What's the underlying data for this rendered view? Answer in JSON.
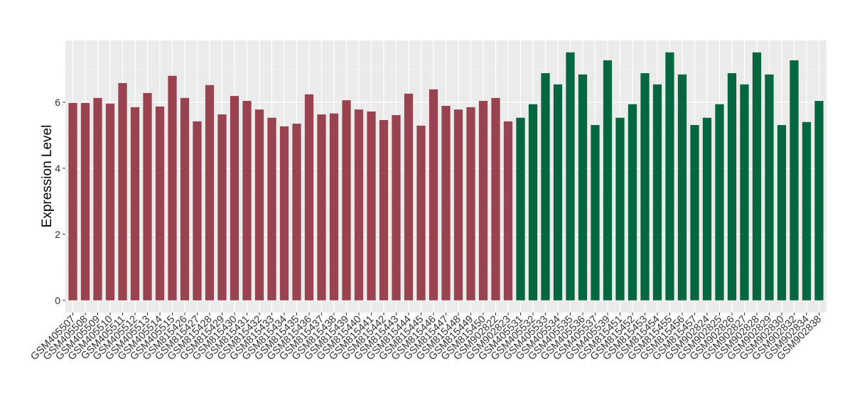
{
  "chart_data": {
    "type": "bar",
    "y_label": "Expression Level",
    "categories": [
      "GSM405507",
      "GSM405508",
      "GSM405509",
      "GSM405510",
      "GSM405511",
      "GSM405512",
      "GSM405513",
      "GSM405514",
      "GSM405515",
      "GSM815426",
      "GSM815427",
      "GSM815428",
      "GSM815429",
      "GSM815430",
      "GSM815431",
      "GSM815432",
      "GSM815433",
      "GSM815434",
      "GSM815435",
      "GSM815436",
      "GSM815437",
      "GSM815438",
      "GSM815439",
      "GSM815440",
      "GSM815441",
      "GSM815442",
      "GSM815443",
      "GSM815444",
      "GSM815445",
      "GSM815446",
      "GSM815447",
      "GSM815448",
      "GSM815449",
      "GSM815450",
      "GSM902822",
      "GSM902823",
      "GSM405531",
      "GSM405532",
      "GSM405533",
      "GSM405534",
      "GSM405535",
      "GSM405536",
      "GSM405537",
      "GSM405539",
      "GSM815451",
      "GSM815452",
      "GSM815453",
      "GSM815454",
      "GSM815455",
      "GSM815456",
      "GSM815457",
      "GSM902824",
      "GSM902825",
      "GSM902826",
      "GSM902827",
      "GSM902828",
      "GSM902829",
      "GSM902830",
      "GSM902832",
      "GSM902834",
      "GSM902838"
    ],
    "values": [
      5.98,
      5.98,
      6.13,
      5.96,
      6.58,
      5.85,
      6.28,
      5.87,
      6.8,
      6.13,
      5.42,
      6.52,
      5.63,
      6.19,
      6.04,
      5.78,
      5.53,
      5.27,
      5.35,
      6.24,
      5.63,
      5.66,
      6.06,
      5.78,
      5.72,
      5.46,
      5.61,
      6.26,
      5.29,
      6.39,
      5.89,
      5.78,
      5.85,
      6.04,
      6.13,
      5.42,
      5.53,
      5.94,
      6.88,
      6.54,
      7.51,
      6.84,
      5.31,
      7.27,
      5.53,
      5.94,
      6.88,
      6.54,
      7.51,
      6.84,
      5.31,
      5.53,
      5.94,
      6.88,
      6.54,
      7.51,
      6.84,
      5.31,
      7.27,
      5.4,
      6.04
    ],
    "colors": [
      "#9a4350",
      "#9a4350",
      "#9a4350",
      "#9a4350",
      "#9a4350",
      "#9a4350",
      "#9a4350",
      "#9a4350",
      "#9a4350",
      "#9a4350",
      "#9a4350",
      "#9a4350",
      "#9a4350",
      "#9a4350",
      "#9a4350",
      "#9a4350",
      "#9a4350",
      "#9a4350",
      "#9a4350",
      "#9a4350",
      "#9a4350",
      "#9a4350",
      "#9a4350",
      "#9a4350",
      "#9a4350",
      "#9a4350",
      "#9a4350",
      "#9a4350",
      "#9a4350",
      "#9a4350",
      "#9a4350",
      "#9a4350",
      "#9a4350",
      "#9a4350",
      "#9a4350",
      "#9a4350",
      "#05673f",
      "#05673f",
      "#05673f",
      "#05673f",
      "#05673f",
      "#05673f",
      "#05673f",
      "#05673f",
      "#05673f",
      "#05673f",
      "#05673f",
      "#05673f",
      "#05673f",
      "#05673f",
      "#05673f",
      "#05673f",
      "#05673f",
      "#05673f",
      "#05673f",
      "#05673f",
      "#05673f",
      "#05673f",
      "#05673f",
      "#05673f",
      "#05673f"
    ],
    "ylim": [
      -0.37,
      7.87
    ],
    "yticks": [
      0,
      2,
      4,
      6
    ],
    "grid": true,
    "minor_grid": true
  }
}
